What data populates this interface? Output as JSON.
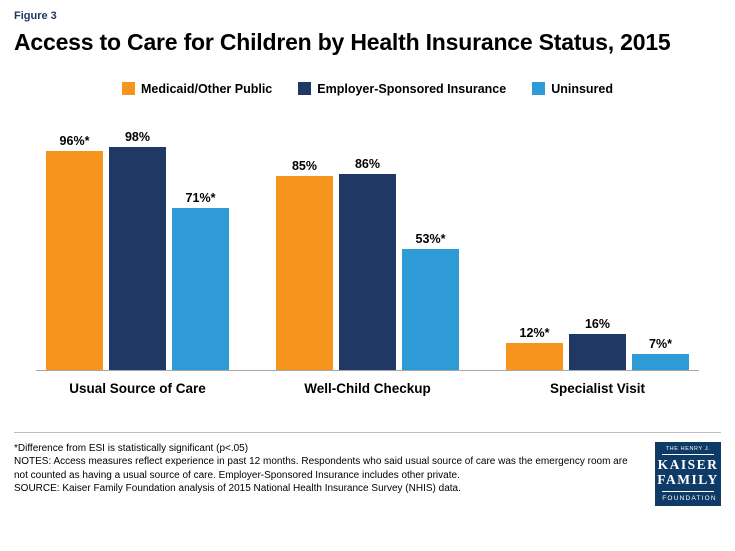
{
  "figure_label": "Figure 3",
  "title": "Access to Care for Children by Health Insurance Status, 2015",
  "chart_data": {
    "type": "bar",
    "categories": [
      "Usual Source of Care",
      "Well-Child Checkup",
      "Specialist Visit"
    ],
    "series": [
      {
        "name": "Medicaid/Other Public",
        "color": "#F7941D",
        "values": [
          96,
          85,
          12
        ],
        "labels": [
          "96%*",
          "85%",
          "12%*"
        ]
      },
      {
        "name": "Employer-Sponsored Insurance",
        "color": "#1F3864",
        "values": [
          98,
          86,
          16
        ],
        "labels": [
          "98%",
          "86%",
          "16%"
        ]
      },
      {
        "name": "Uninsured",
        "color": "#2E9BD6",
        "values": [
          71,
          53,
          7
        ],
        "labels": [
          "71%*",
          "53%*",
          "7%*"
        ]
      }
    ],
    "ylim": [
      0,
      100
    ],
    "grid": false,
    "legend_position": "top"
  },
  "footnotes": {
    "significance": "*Difference from ESI is statistically significant (p<.05)",
    "notes": "NOTES: Access measures reflect experience in past 12 months. Respondents who said usual source of care was the emergency room are not counted as having a usual source of care. Employer-Sponsored Insurance includes other private.",
    "source": "SOURCE: Kaiser Family Foundation analysis of 2015 National Health Insurance Survey (NHIS) data."
  },
  "logo": {
    "top": "THE HENRY J.",
    "name1": "KAISER",
    "name2": "FAMILY",
    "bottom": "FOUNDATION"
  }
}
